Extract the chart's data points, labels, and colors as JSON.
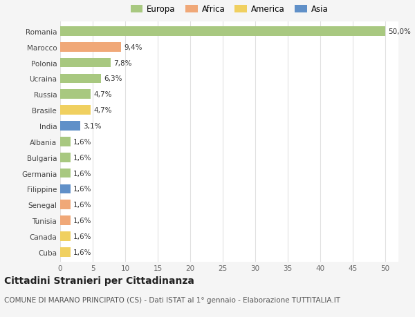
{
  "countries": [
    "Romania",
    "Marocco",
    "Polonia",
    "Ucraina",
    "Russia",
    "Brasile",
    "India",
    "Albania",
    "Bulgaria",
    "Germania",
    "Filippine",
    "Senegal",
    "Tunisia",
    "Canada",
    "Cuba"
  ],
  "values": [
    50.0,
    9.4,
    7.8,
    6.3,
    4.7,
    4.7,
    3.1,
    1.6,
    1.6,
    1.6,
    1.6,
    1.6,
    1.6,
    1.6,
    1.6
  ],
  "labels": [
    "50,0%",
    "9,4%",
    "7,8%",
    "6,3%",
    "4,7%",
    "4,7%",
    "3,1%",
    "1,6%",
    "1,6%",
    "1,6%",
    "1,6%",
    "1,6%",
    "1,6%",
    "1,6%",
    "1,6%"
  ],
  "continents": [
    "Europa",
    "Africa",
    "Europa",
    "Europa",
    "Europa",
    "America",
    "Asia",
    "Europa",
    "Europa",
    "Europa",
    "Asia",
    "Africa",
    "Africa",
    "America",
    "America"
  ],
  "continent_colors": {
    "Europa": "#a8c880",
    "Africa": "#f0a878",
    "America": "#f0d060",
    "Asia": "#6090c8"
  },
  "legend_order": [
    "Europa",
    "Africa",
    "America",
    "Asia"
  ],
  "title": "Cittadini Stranieri per Cittadinanza",
  "subtitle": "COMUNE DI MARANO PRINCIPATO (CS) - Dati ISTAT al 1° gennaio - Elaborazione TUTTITALIA.IT",
  "xlim": [
    0,
    52
  ],
  "xticks": [
    0,
    5,
    10,
    15,
    20,
    25,
    30,
    35,
    40,
    45,
    50
  ],
  "bg_color": "#f5f5f5",
  "plot_bg_color": "#ffffff",
  "grid_color": "#e0e0e0",
  "title_fontsize": 10,
  "subtitle_fontsize": 7.5,
  "label_fontsize": 7.5,
  "tick_fontsize": 7.5,
  "legend_fontsize": 8.5
}
